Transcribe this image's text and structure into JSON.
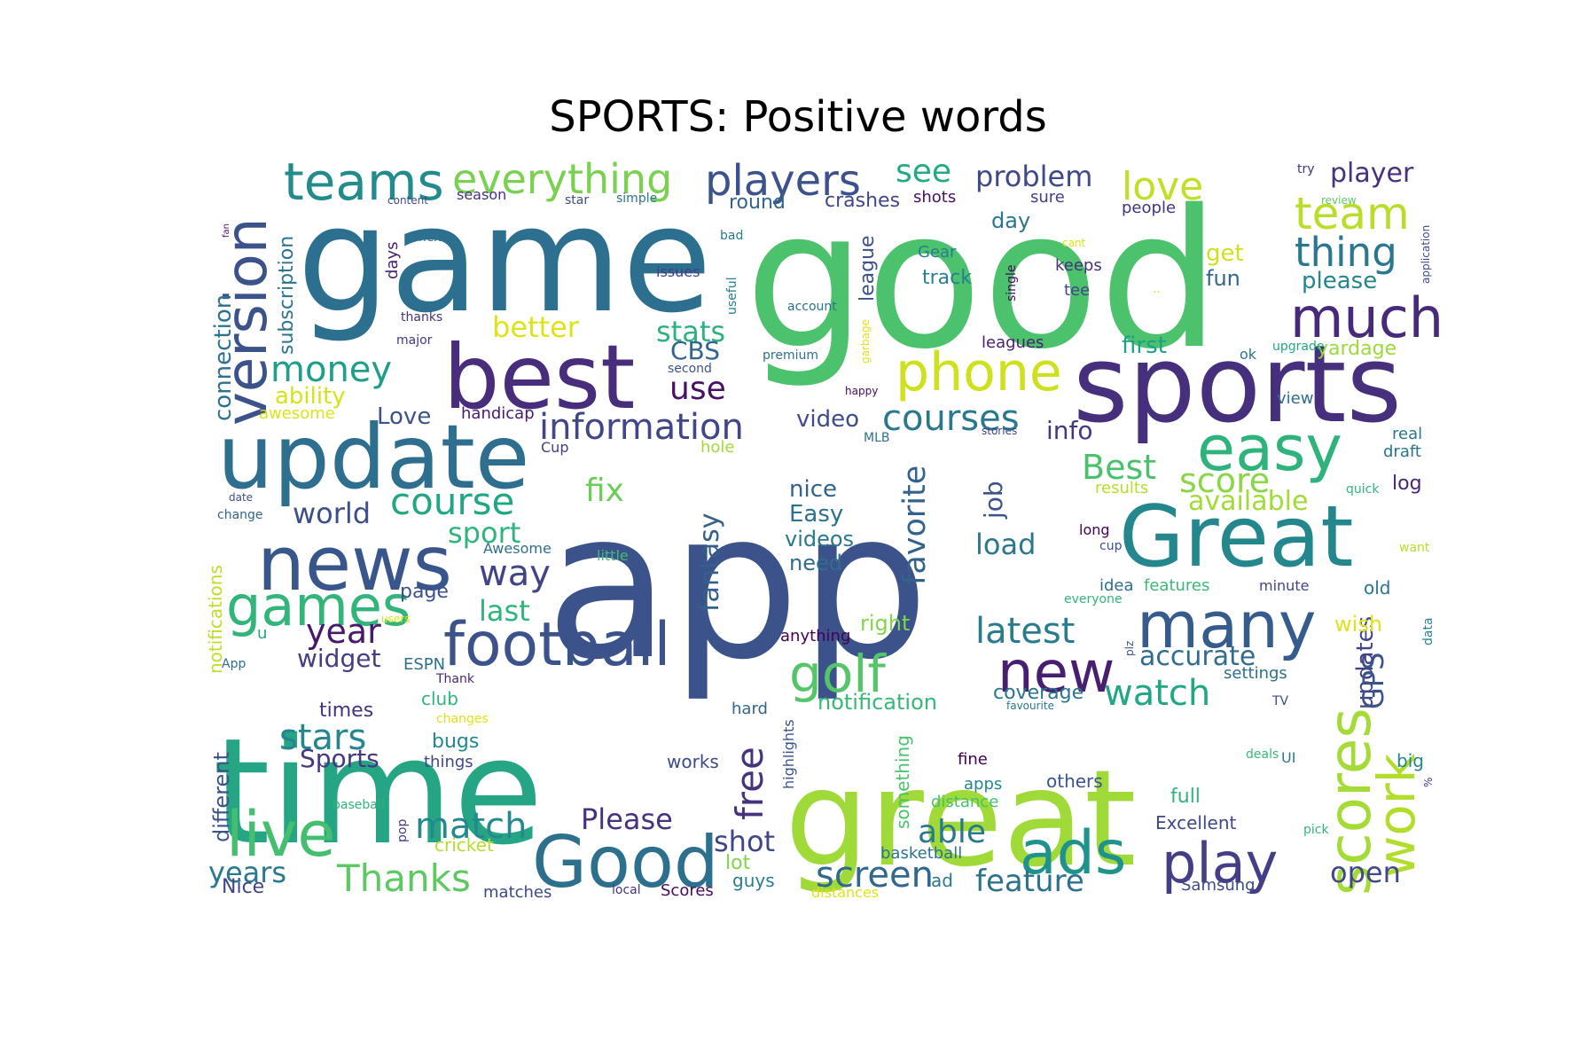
{
  "title": "SPORTS: Positive words",
  "palette": [
    "#440154",
    "#3b528b",
    "#21918c",
    "#5ec962",
    "#fde725"
  ],
  "words": [
    {
      "text": "app",
      "color": "#3b528b"
    },
    {
      "text": "good",
      "color": "#4cc26c"
    },
    {
      "text": "game",
      "color": "#2c6f8e"
    },
    {
      "text": "time",
      "color": "#25a584"
    },
    {
      "text": "great",
      "color": "#a0da39"
    },
    {
      "text": "best",
      "color": "#472d7b"
    },
    {
      "text": "sports",
      "color": "#46307e"
    },
    {
      "text": "update",
      "color": "#2e6e8e"
    },
    {
      "text": "Great",
      "color": "#24878e"
    },
    {
      "text": "news",
      "color": "#39568c"
    },
    {
      "text": "easy",
      "color": "#2eb37c"
    },
    {
      "text": "phone",
      "color": "#cde11d"
    },
    {
      "text": "many",
      "color": "#365c8d"
    },
    {
      "text": "football",
      "color": "#3b528b"
    },
    {
      "text": "version",
      "color": "#3b528b"
    },
    {
      "text": "teams",
      "color": "#228c8d"
    },
    {
      "text": "everything",
      "color": "#7ad151"
    },
    {
      "text": "players",
      "color": "#3b528b"
    },
    {
      "text": "Good",
      "color": "#2d708e"
    },
    {
      "text": "ads",
      "color": "#20928c"
    },
    {
      "text": "scores",
      "color": "#a5db36"
    },
    {
      "text": "live",
      "color": "#44bf70"
    },
    {
      "text": "games",
      "color": "#31b57b"
    },
    {
      "text": "golf",
      "color": "#54c568"
    },
    {
      "text": "play",
      "color": "#433e85"
    },
    {
      "text": "new",
      "color": "#481f70"
    },
    {
      "text": "much",
      "color": "#472a7a"
    },
    {
      "text": "thing",
      "color": "#2a778e"
    },
    {
      "text": "team",
      "color": "#b8de29"
    },
    {
      "text": "love",
      "color": "#c0df25"
    },
    {
      "text": "work",
      "color": "#b2dd2d"
    },
    {
      "text": "information",
      "color": "#404688"
    },
    {
      "text": "courses",
      "color": "#2a788e"
    },
    {
      "text": "favorite",
      "color": "#33638d"
    },
    {
      "text": "money",
      "color": "#1f9e89"
    },
    {
      "text": "course",
      "color": "#22a785"
    },
    {
      "text": "stars",
      "color": "#24868e"
    },
    {
      "text": "match",
      "color": "#23898e"
    },
    {
      "text": "Thanks",
      "color": "#5ec962"
    },
    {
      "text": "screen",
      "color": "#31688e"
    },
    {
      "text": "watch",
      "color": "#22a785"
    },
    {
      "text": "latest",
      "color": "#287c8e"
    },
    {
      "text": "free",
      "color": "#46327e"
    },
    {
      "text": "Best",
      "color": "#4ac16d"
    },
    {
      "text": "score",
      "color": "#8bd646"
    },
    {
      "text": "problem",
      "color": "#3e4989"
    },
    {
      "text": "see",
      "color": "#23a983"
    },
    {
      "text": "better",
      "color": "#dde318"
    },
    {
      "text": "stats",
      "color": "#2db27d"
    },
    {
      "text": "use",
      "color": "#471164"
    },
    {
      "text": "way",
      "color": "#414487"
    },
    {
      "text": "last",
      "color": "#2fb47c"
    },
    {
      "text": "year",
      "color": "#48186a"
    },
    {
      "text": "world",
      "color": "#3c4f8a"
    },
    {
      "text": "sport",
      "color": "#2fb47c"
    },
    {
      "text": "fantasy",
      "color": "#355f8d"
    },
    {
      "text": "fix",
      "color": "#6ccd5a"
    },
    {
      "text": "able",
      "color": "#2a788e"
    },
    {
      "text": "feature",
      "color": "#2c728e"
    },
    {
      "text": "available",
      "color": "#a2da37"
    },
    {
      "text": "accurate",
      "color": "#2f6c8e"
    },
    {
      "text": "open",
      "color": "#3f4889"
    },
    {
      "text": "Please",
      "color": "#46327e"
    },
    {
      "text": "shot",
      "color": "#404588"
    },
    {
      "text": "years",
      "color": "#2a788e"
    },
    {
      "text": "Sports",
      "color": "#453781"
    },
    {
      "text": "load",
      "color": "#2a788e"
    },
    {
      "text": "job",
      "color": "#3a538b"
    },
    {
      "text": "info",
      "color": "#453882"
    },
    {
      "text": "updates",
      "color": "#414487"
    },
    {
      "text": "GPS",
      "color": "#3b528b"
    },
    {
      "text": "player",
      "color": "#46327e"
    },
    {
      "text": "connection",
      "color": "#2c728e"
    },
    {
      "text": "subscription",
      "color": "#2b748e"
    },
    {
      "text": "widget",
      "color": "#433d84"
    },
    {
      "text": "ability",
      "color": "#d5e21a"
    },
    {
      "text": "video",
      "color": "#3e4c8a"
    },
    {
      "text": "Love",
      "color": "#3b528b"
    },
    {
      "text": "CBS",
      "color": "#32648e"
    },
    {
      "text": "nice",
      "color": "#33638d"
    },
    {
      "text": "Easy",
      "color": "#2c718e"
    },
    {
      "text": "videos",
      "color": "#2a788e"
    },
    {
      "text": "need",
      "color": "#2e6d8e"
    },
    {
      "text": "right",
      "color": "#84d44b"
    },
    {
      "text": "notification",
      "color": "#37b878"
    },
    {
      "text": "coverage",
      "color": "#2b758e"
    },
    {
      "text": "first",
      "color": "#1fa088"
    },
    {
      "text": "please",
      "color": "#25848e"
    },
    {
      "text": "fun",
      "color": "#31678e"
    },
    {
      "text": "get",
      "color": "#d0e11c"
    },
    {
      "text": "day",
      "color": "#2a768e"
    },
    {
      "text": "league",
      "color": "#3b528b"
    },
    {
      "text": "track",
      "color": "#26818e"
    },
    {
      "text": "Gear",
      "color": "#277f8e"
    },
    {
      "text": "keeps",
      "color": "#472f7d"
    },
    {
      "text": "tee",
      "color": "#3f4788"
    },
    {
      "text": "round",
      "color": "#32648e"
    },
    {
      "text": "crashes",
      "color": "#404688"
    },
    {
      "text": "shots",
      "color": "#471365"
    },
    {
      "text": "sure",
      "color": "#433e85"
    },
    {
      "text": "people",
      "color": "#46337f"
    },
    {
      "text": "leagues",
      "color": "#481f70"
    },
    {
      "text": "yardage",
      "color": "#9bd93c"
    },
    {
      "text": "ok",
      "color": "#2c728e"
    },
    {
      "text": "view",
      "color": "#2e6d8e"
    },
    {
      "text": "real",
      "color": "#2a778e"
    },
    {
      "text": "draft",
      "color": "#2b748e"
    },
    {
      "text": "log",
      "color": "#482475"
    },
    {
      "text": "results",
      "color": "#b5de2b"
    },
    {
      "text": "long",
      "color": "#440154"
    },
    {
      "text": "cup",
      "color": "#3b528b"
    },
    {
      "text": "features",
      "color": "#3aba76"
    },
    {
      "text": "idea",
      "color": "#2e6e8e"
    },
    {
      "text": "minute",
      "color": "#3f4788"
    },
    {
      "text": "old",
      "color": "#2a768e"
    },
    {
      "text": "wish",
      "color": "#dde318"
    },
    {
      "text": "settings",
      "color": "#2d708e"
    },
    {
      "text": "hard",
      "color": "#32658e"
    },
    {
      "text": "highlights",
      "color": "#3b528b"
    },
    {
      "text": "something",
      "color": "#4ac16d"
    },
    {
      "text": "fine",
      "color": "#440154"
    },
    {
      "text": "apps",
      "color": "#24878e"
    },
    {
      "text": "distance",
      "color": "#46c06f"
    },
    {
      "text": "others",
      "color": "#3a548c"
    },
    {
      "text": "full",
      "color": "#2fb47c"
    },
    {
      "text": "Excellent",
      "color": "#3f4889"
    },
    {
      "text": "big",
      "color": "#25858e"
    },
    {
      "text": "basketball",
      "color": "#2c728e"
    },
    {
      "text": "ad",
      "color": "#2a788e"
    },
    {
      "text": "distances",
      "color": "#dde318"
    },
    {
      "text": "Samsung",
      "color": "#3e4989"
    },
    {
      "text": "guys",
      "color": "#287d8e"
    },
    {
      "text": "lot",
      "color": "#84d44b"
    },
    {
      "text": "works",
      "color": "#3e4a89"
    },
    {
      "text": "anything",
      "color": "#440154"
    },
    {
      "text": "handicap",
      "color": "#481a6c"
    },
    {
      "text": "Awesome",
      "color": "#2d708e"
    },
    {
      "text": "little",
      "color": "#3fbc73"
    },
    {
      "text": "hole",
      "color": "#a2da37"
    },
    {
      "text": "Cup",
      "color": "#433e85"
    },
    {
      "text": "MLB",
      "color": "#2c718e"
    },
    {
      "text": "stories",
      "color": "#404588"
    },
    {
      "text": "premium",
      "color": "#2e6f8e"
    },
    {
      "text": "garbage",
      "color": "#dde318"
    },
    {
      "text": "happy",
      "color": "#460a5d"
    },
    {
      "text": "second",
      "color": "#3b528b"
    },
    {
      "text": "account",
      "color": "#2b748e"
    },
    {
      "text": "useful",
      "color": "#277f8e"
    },
    {
      "text": "bad",
      "color": "#2a788e"
    },
    {
      "text": "issues",
      "color": "#433e85"
    },
    {
      "text": "next",
      "color": "#2c728e"
    },
    {
      "text": "thanks",
      "color": "#46327e"
    },
    {
      "text": "major",
      "color": "#453781"
    },
    {
      "text": "days",
      "color": "#482173"
    },
    {
      "text": "fan",
      "color": "#471365"
    },
    {
      "text": "content",
      "color": "#3e4a89"
    },
    {
      "text": "season",
      "color": "#46307e"
    },
    {
      "text": "star",
      "color": "#3e4c8a"
    },
    {
      "text": "simple",
      "color": "#2c718e"
    },
    {
      "text": "single",
      "color": "#460a5d"
    },
    {
      "text": "cant",
      "color": "#dde318"
    },
    {
      "text": "..",
      "color": "#dde318"
    },
    {
      "text": "upgrade",
      "color": "#22a785"
    },
    {
      "text": "try",
      "color": "#46337f"
    },
    {
      "text": "review",
      "color": "#5ec962"
    },
    {
      "text": "application",
      "color": "#3e4a89"
    },
    {
      "text": "quick",
      "color": "#2fb47c"
    },
    {
      "text": "want",
      "color": "#b8de29"
    },
    {
      "text": "data",
      "color": "#25858e"
    },
    {
      "text": "plz",
      "color": "#3b528b"
    },
    {
      "text": "everyone",
      "color": "#2fb47c"
    },
    {
      "text": "TV",
      "color": "#3e4989"
    },
    {
      "text": "UI",
      "color": "#2a768e"
    },
    {
      "text": "deals",
      "color": "#3aba76"
    },
    {
      "text": "pick",
      "color": "#31b57b"
    },
    {
      "text": "%",
      "color": "#46307e"
    },
    {
      "text": "favourite",
      "color": "#2a788e"
    },
    {
      "text": "changes",
      "color": "#dde318"
    },
    {
      "text": "Thank",
      "color": "#482878"
    },
    {
      "text": "club",
      "color": "#2fb47c"
    },
    {
      "text": "times",
      "color": "#46337f"
    },
    {
      "text": "bugs",
      "color": "#24878e"
    },
    {
      "text": "things",
      "color": "#3f4788"
    },
    {
      "text": "cricket",
      "color": "#b5de2b"
    },
    {
      "text": "pop",
      "color": "#443983"
    },
    {
      "text": "matches",
      "color": "#3e4989"
    },
    {
      "text": "local",
      "color": "#46337f"
    },
    {
      "text": "Scores",
      "color": "#460a5d"
    },
    {
      "text": "baseball",
      "color": "#2fb47c"
    },
    {
      "text": "different",
      "color": "#3b528b"
    },
    {
      "text": "Nice",
      "color": "#414487"
    },
    {
      "text": "ESPN",
      "color": "#2c718e"
    },
    {
      "text": "App",
      "color": "#2e6e8e"
    },
    {
      "text": "u",
      "color": "#22a785"
    },
    {
      "text": "users",
      "color": "#dde318"
    },
    {
      "text": "page",
      "color": "#3b528b"
    },
    {
      "text": "notifications",
      "color": "#bddf26"
    },
    {
      "text": "awesome",
      "color": "#dde318"
    },
    {
      "text": "date",
      "color": "#3e4c8a"
    },
    {
      "text": "change",
      "color": "#31668e"
    }
  ]
}
